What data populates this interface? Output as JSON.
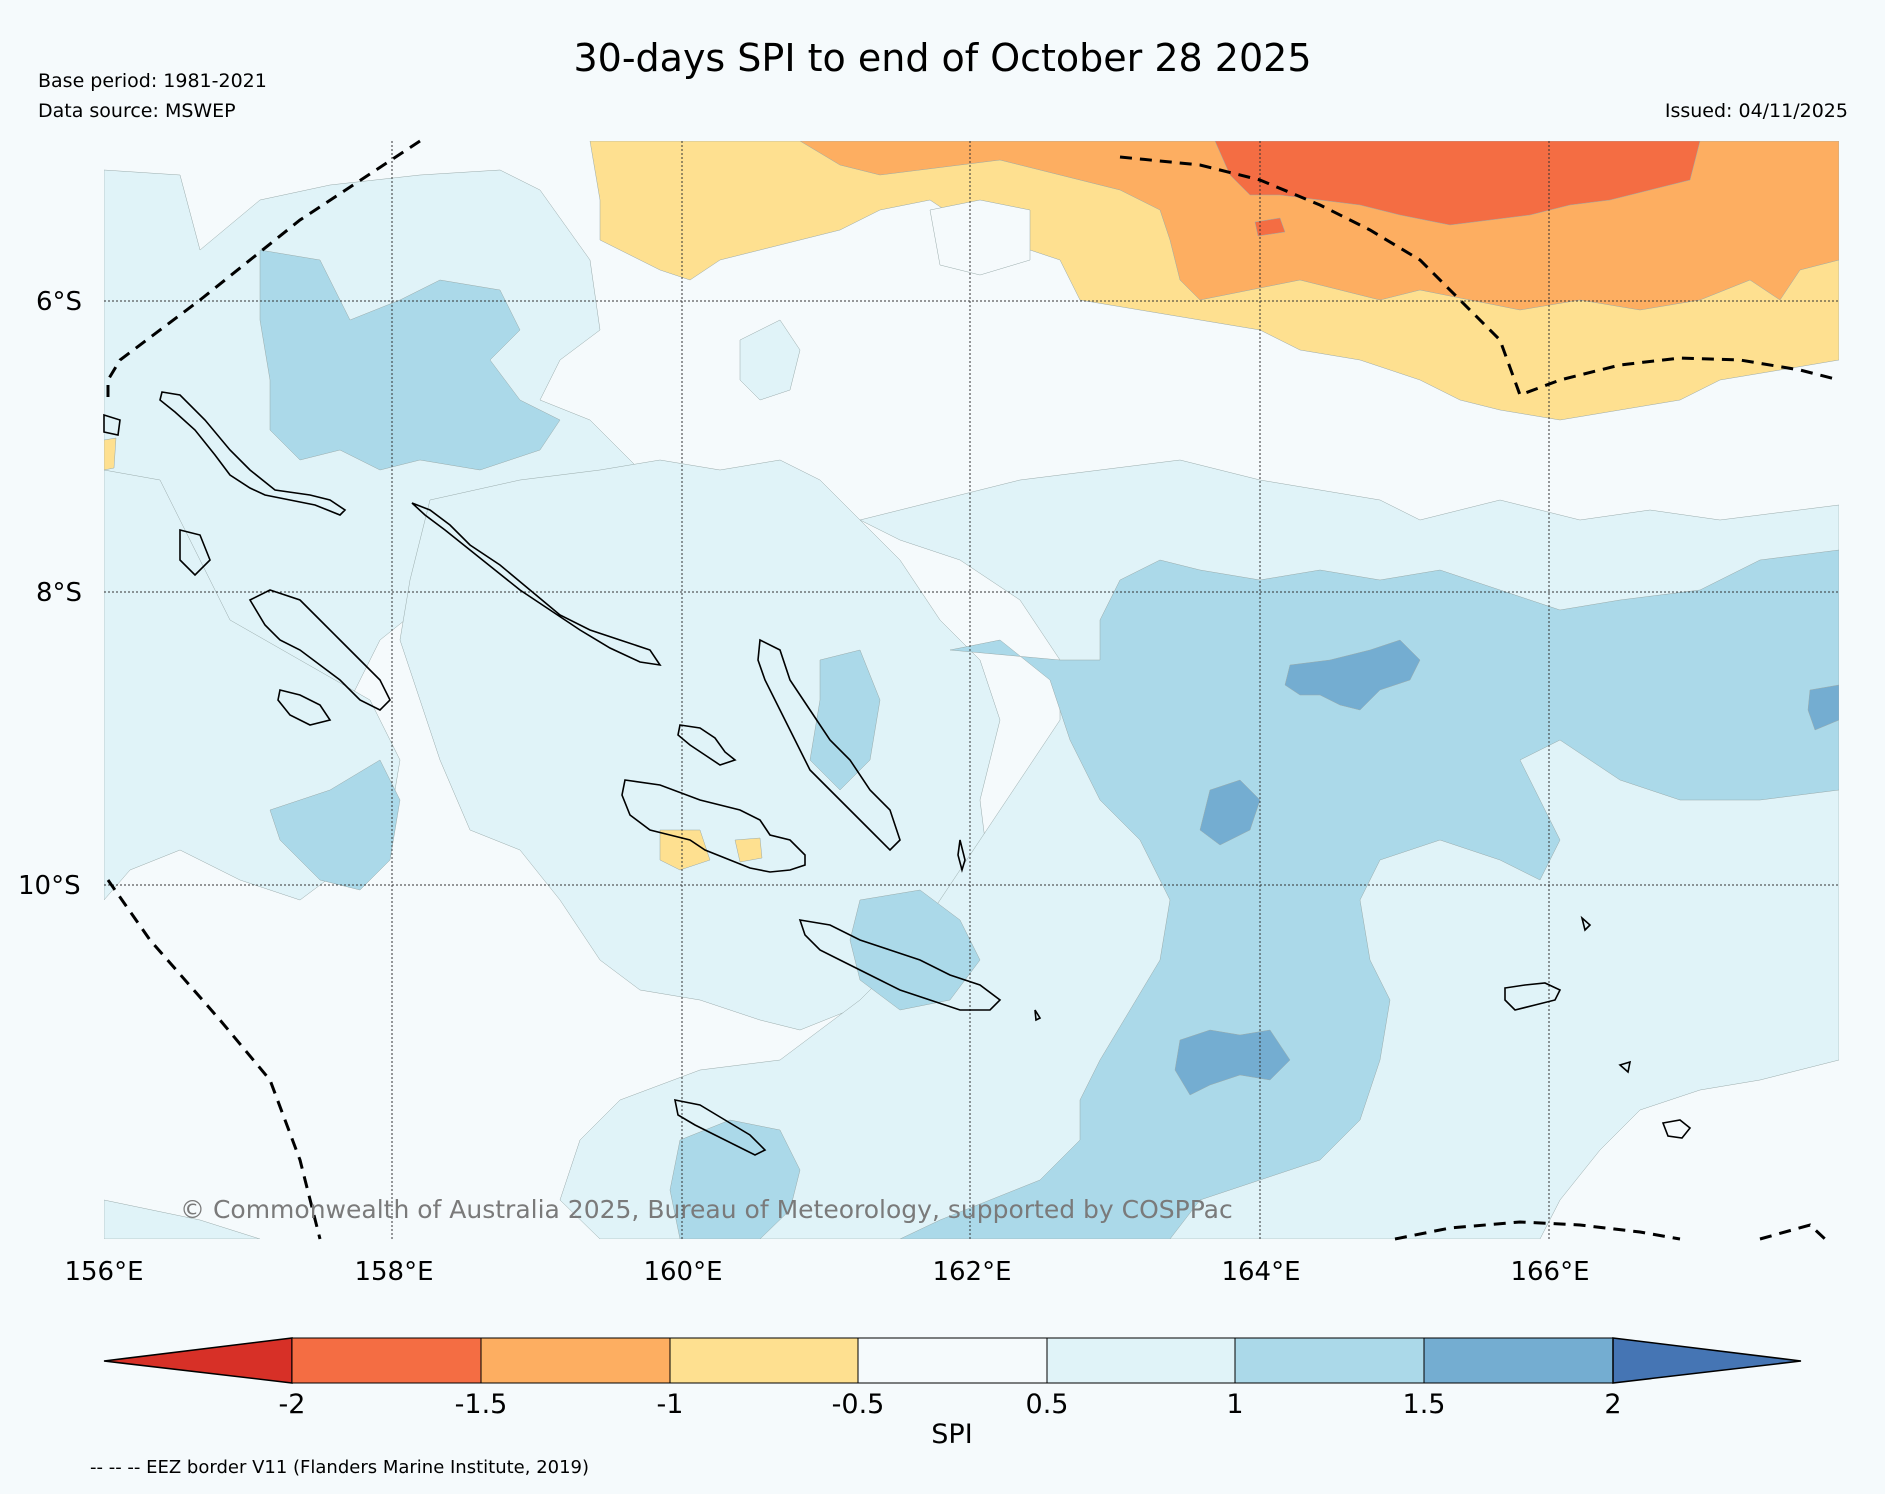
{
  "title": "30-days SPI to end of October 28 2025",
  "base_period": "Base period: 1981-2021",
  "data_source": "Data source: MSWEP",
  "issued": "Issued: 04/11/2025",
  "copyright": "© Commonwealth of Australia 2025, Bureau of Meteorology, supported by COSPPac",
  "footnote": "-- -- -- EEZ border V11 (Flanders Marine Institute, 2019)",
  "map": {
    "lon_range": [
      156,
      168
    ],
    "lat_range": [
      -12.3,
      -4.7
    ],
    "lat_labels": [
      "6°S",
      "8°S",
      "10°S"
    ],
    "lon_labels": [
      "156°E",
      "158°E",
      "160°E",
      "162°E",
      "164°E",
      "166°E"
    ]
  },
  "colorbar": {
    "title": "SPI",
    "ticks": [
      "-2",
      "-1.5",
      "-1",
      "-0.5",
      "0.5",
      "1",
      "1.5",
      "2"
    ],
    "colors": {
      "lt_-2": "#d73027",
      "-2_-1.5": "#f46d43",
      "-1.5_-1": "#fdae61",
      "-1_-0.5": "#fee090",
      "-0.5_0.5": "#f5fafc",
      "0.5_1": "#e0f3f8",
      "1_1.5": "#abd9e9",
      "1.5_2": "#74add1",
      "gt_2": "#4575b4"
    }
  }
}
